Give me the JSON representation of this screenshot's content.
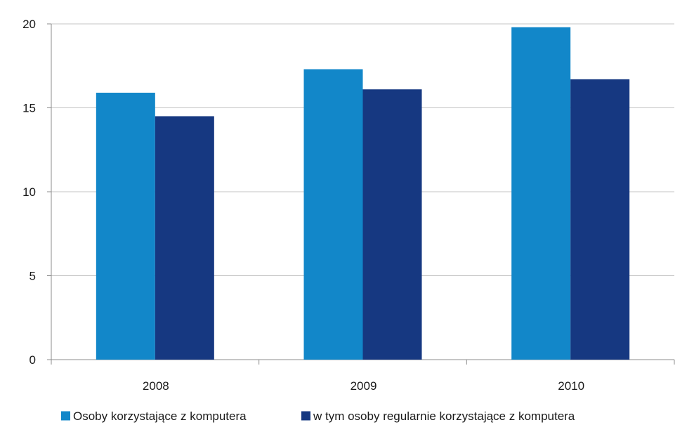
{
  "chart_data": {
    "type": "bar",
    "categories": [
      "2008",
      "2009",
      "2010"
    ],
    "series": [
      {
        "name": "Osoby korzystające z komputera",
        "values": [
          15.9,
          17.3,
          19.8
        ],
        "color": "#1287c9"
      },
      {
        "name": "w tym osoby regularnie korzystające z komputera",
        "values": [
          14.5,
          16.1,
          16.7
        ],
        "color": "#163881"
      }
    ],
    "title": "",
    "xlabel": "",
    "ylabel": "",
    "ylim": [
      0,
      20
    ],
    "yticks": [
      "0",
      "5",
      "10",
      "15",
      "20"
    ],
    "grid": true,
    "legend_position": "bottom"
  }
}
